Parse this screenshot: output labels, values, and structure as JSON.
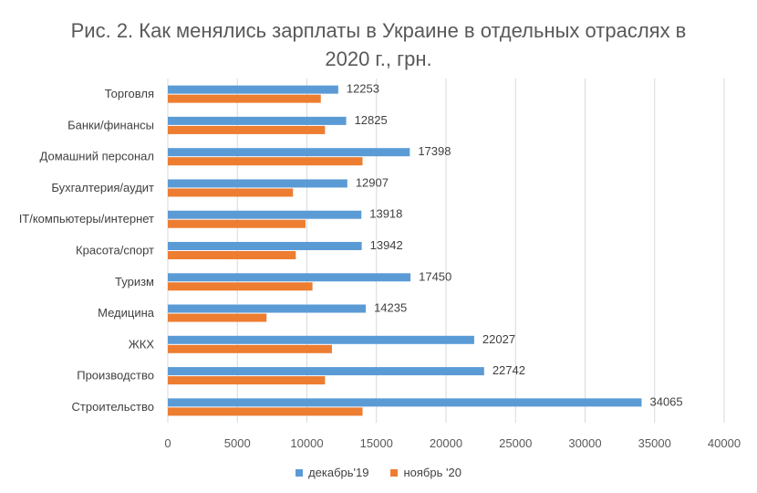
{
  "chart_data": {
    "type": "bar",
    "orientation": "horizontal",
    "title_line1": "Рис. 2. Как менялись зарплаты в Украине в отдельных отраслях в",
    "title_line2": "2020 г., грн.",
    "categories": [
      "Торговля",
      "Банки/финансы",
      "Домашний персонал",
      "Бухгалтерия/аудит",
      "IT/компьютеры/интернет",
      "Красота/спорт",
      "Туризм",
      "Медицина",
      "ЖКХ",
      "Производство",
      "Строительство"
    ],
    "series": [
      {
        "name": "декабрь'19",
        "color": "#5B9BD5",
        "values": [
          12253,
          12825,
          17398,
          12907,
          13918,
          13942,
          17450,
          14235,
          22027,
          22742,
          34065
        ],
        "labels": [
          "12253",
          "12825",
          "17398",
          "12907",
          "13918",
          "13942",
          "17450",
          "14235",
          "22027",
          "22742",
          "34065"
        ]
      },
      {
        "name": "ноябрь '20",
        "color": "#ED7D31",
        "values": [
          11000,
          11300,
          14000,
          9000,
          9900,
          9200,
          10400,
          7100,
          11800,
          11300,
          14000
        ]
      }
    ],
    "xlim": [
      0,
      40000
    ],
    "x_ticks": [
      "0",
      "5000",
      "10000",
      "15000",
      "20000",
      "25000",
      "30000",
      "35000",
      "40000"
    ],
    "grid": "vertical",
    "legend_position": "bottom"
  }
}
